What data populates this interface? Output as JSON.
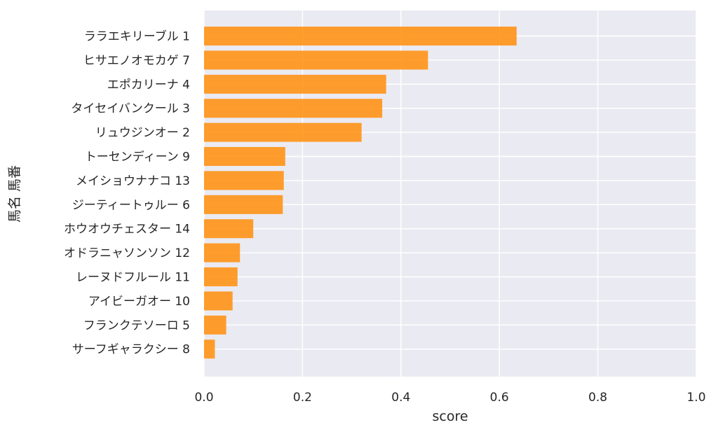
{
  "chart_data": {
    "type": "bar",
    "orientation": "horizontal",
    "xlabel": "score",
    "ylabel": "馬名 馬番",
    "xlim": [
      0.0,
      1.0
    ],
    "xticks": [
      "0.0",
      "0.2",
      "0.4",
      "0.6",
      "0.8",
      "1.0"
    ],
    "grid": true,
    "bar_color": "#ff9416",
    "plot_background": "#eaeaf2",
    "categories": [
      "ララエキリーブル 1",
      "ヒサエノオモカゲ 7",
      "エポカリーナ 4",
      "タイセイバンクール 3",
      "リュウジンオー 2",
      "トーセンディーン 9",
      "メイショウナナコ 13",
      "ジーティートゥルー 6",
      "ホウオウチェスター 14",
      "オドラニャソンソン 12",
      "レーヌドフルール 11",
      "アイビーガオー 10",
      "フランクテソーロ 5",
      "サーフギャラクシー 8"
    ],
    "values": [
      0.635,
      0.455,
      0.37,
      0.362,
      0.32,
      0.165,
      0.162,
      0.16,
      0.1,
      0.073,
      0.068,
      0.058,
      0.045,
      0.022
    ]
  }
}
